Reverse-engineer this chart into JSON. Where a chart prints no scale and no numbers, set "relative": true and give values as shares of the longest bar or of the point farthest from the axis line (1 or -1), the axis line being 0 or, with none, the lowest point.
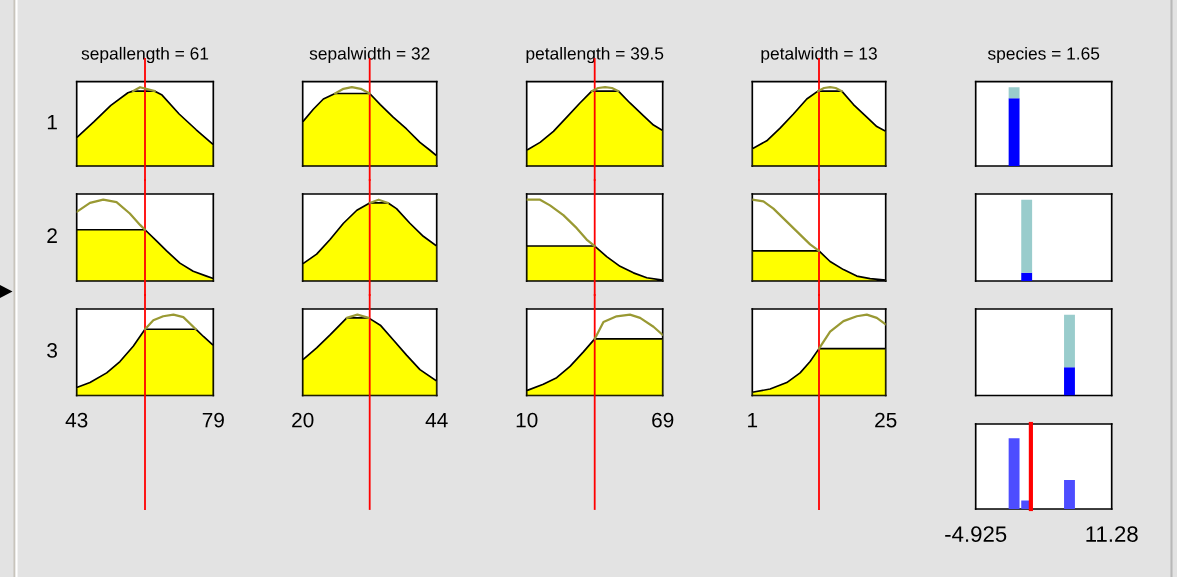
{
  "chart_data": [
    {
      "type": "area",
      "title": "sepallength = 61",
      "ylabel": "1",
      "relative": true,
      "xlim": [
        43,
        79
      ],
      "tick_labels": false,
      "series": [
        {
          "type": "line",
          "color": "#999933",
          "x": [
            57.8,
            59.7,
            63.6
          ],
          "values": [
            0.95,
            1.0,
            0.95
          ]
        },
        {
          "type": "area",
          "color": "#ffff00",
          "x": [
            43,
            47.5,
            52,
            56.5,
            57.8,
            63.6,
            65.5,
            70,
            74.5,
            79
          ],
          "values": [
            0.36,
            0.56,
            0.77,
            0.93,
            0.95,
            0.95,
            0.9,
            0.66,
            0.46,
            0.27
          ]
        }
      ],
      "ref_lines": [
        {
          "axis": "x",
          "value": 61,
          "color": "#ff0000"
        }
      ]
    },
    {
      "type": "area",
      "title": "sepalwidth = 32",
      "relative": true,
      "xlim": [
        20,
        44
      ],
      "tick_labels": false,
      "series": [
        {
          "type": "line",
          "color": "#999933",
          "x": [
            25.8,
            27.3,
            28.8,
            30.4,
            32
          ],
          "values": [
            0.92,
            0.98,
            1.0,
            0.98,
            0.92
          ]
        },
        {
          "type": "area",
          "color": "#ffff00",
          "x": [
            20,
            21.9,
            23.7,
            25.8,
            32,
            33.9,
            36.2,
            38.6,
            41,
            42.8,
            44
          ],
          "values": [
            0.56,
            0.72,
            0.85,
            0.92,
            0.92,
            0.78,
            0.62,
            0.47,
            0.3,
            0.2,
            0.13
          ]
        }
      ],
      "ref_lines": [
        {
          "axis": "x",
          "value": 32,
          "color": "#ff0000"
        }
      ]
    },
    {
      "type": "area",
      "title": "petallength = 39.5",
      "relative": true,
      "xlim": [
        10,
        69
      ],
      "tick_labels": false,
      "series": [
        {
          "type": "line",
          "color": "#999933",
          "x": [
            38.2,
            41,
            44,
            47,
            49.8
          ],
          "values": [
            0.95,
            0.99,
            1.0,
            0.99,
            0.95
          ]
        },
        {
          "type": "area",
          "color": "#ffff00",
          "x": [
            10,
            15.8,
            21.6,
            27.4,
            33.1,
            38.2,
            49.8,
            54.8,
            60.6,
            65,
            69
          ],
          "values": [
            0.2,
            0.3,
            0.44,
            0.62,
            0.8,
            0.95,
            0.95,
            0.8,
            0.64,
            0.52,
            0.45
          ]
        }
      ],
      "ref_lines": [
        {
          "axis": "x",
          "value": 39.5,
          "color": "#ff0000"
        }
      ]
    },
    {
      "type": "area",
      "title": "petalwidth = 13",
      "relative": true,
      "xlim": [
        1,
        25
      ],
      "tick_labels": false,
      "series": [
        {
          "type": "line",
          "color": "#999933",
          "x": [
            12.8,
            13.9,
            15,
            16,
            17.1
          ],
          "values": [
            0.95,
            0.99,
            1.0,
            0.99,
            0.95
          ]
        },
        {
          "type": "area",
          "color": "#ffff00",
          "x": [
            1,
            3.6,
            6,
            8.4,
            10.8,
            12.8,
            17.1,
            19.2,
            21.6,
            23.4,
            25
          ],
          "values": [
            0.22,
            0.32,
            0.48,
            0.66,
            0.85,
            0.95,
            0.95,
            0.78,
            0.62,
            0.5,
            0.44
          ]
        }
      ],
      "ref_lines": [
        {
          "axis": "x",
          "value": 13,
          "color": "#ff0000"
        }
      ]
    },
    {
      "type": "bar",
      "title": "species = 1.65",
      "relative": true,
      "stacked": true,
      "xlim": [
        -4.925,
        11.28
      ],
      "tick_labels": false,
      "x": [
        -0.35
      ],
      "series": [
        {
          "color": "#0000ff",
          "values": [
            0.86
          ]
        },
        {
          "color": "#99cccc",
          "values": [
            0.14
          ]
        }
      ]
    },
    {
      "type": "area",
      "ylabel": "2",
      "relative": true,
      "xlim": [
        43,
        79
      ],
      "tick_labels": false,
      "series": [
        {
          "type": "line",
          "color": "#999933",
          "x": [
            43,
            46.5,
            50,
            53.5,
            57,
            59.7,
            61
          ],
          "values": [
            0.85,
            0.96,
            1.0,
            0.97,
            0.83,
            0.69,
            0.63
          ]
        },
        {
          "type": "area",
          "color": "#ffff00",
          "x": [
            43,
            61,
            64.1,
            66.7,
            70.2,
            73.7,
            77.2,
            79
          ],
          "values": [
            0.63,
            0.63,
            0.49,
            0.37,
            0.22,
            0.12,
            0.06,
            0.03
          ]
        }
      ],
      "ref_lines": [
        {
          "axis": "x",
          "value": 61,
          "color": "#ff0000"
        }
      ]
    },
    {
      "type": "area",
      "relative": true,
      "xlim": [
        20,
        44
      ],
      "tick_labels": false,
      "series": [
        {
          "type": "line",
          "color": "#999933",
          "x": [
            32,
            33.6,
            35.3
          ],
          "values": [
            0.96,
            1.0,
            0.96
          ]
        },
        {
          "type": "area",
          "color": "#ffff00",
          "x": [
            20,
            22.5,
            24.9,
            27.3,
            29.7,
            32,
            35.3,
            36.8,
            39.2,
            41.6,
            44
          ],
          "values": [
            0.21,
            0.33,
            0.51,
            0.71,
            0.87,
            0.96,
            0.96,
            0.89,
            0.71,
            0.55,
            0.43
          ]
        }
      ],
      "ref_lines": [
        {
          "axis": "x",
          "value": 32,
          "color": "#ff0000"
        }
      ]
    },
    {
      "type": "area",
      "relative": true,
      "xlim": [
        10,
        69
      ],
      "tick_labels": false,
      "series": [
        {
          "type": "line",
          "color": "#999933",
          "x": [
            10,
            15.8,
            20.1,
            25.9,
            31.7,
            36,
            39.5
          ],
          "values": [
            1.0,
            1.0,
            0.93,
            0.81,
            0.65,
            0.51,
            0.43
          ]
        },
        {
          "type": "area",
          "color": "#ffff00",
          "x": [
            10,
            39.5,
            44.7,
            50.5,
            56.3,
            62.1,
            69
          ],
          "values": [
            0.43,
            0.43,
            0.3,
            0.18,
            0.1,
            0.04,
            0.01
          ]
        }
      ],
      "ref_lines": [
        {
          "axis": "x",
          "value": 39.5,
          "color": "#ff0000"
        }
      ]
    },
    {
      "type": "area",
      "relative": true,
      "xlim": [
        1,
        25
      ],
      "tick_labels": false,
      "series": [
        {
          "type": "line",
          "color": "#999933",
          "x": [
            1,
            3,
            4.8,
            7.2,
            9.6,
            11.4,
            13
          ],
          "values": [
            1.0,
            0.98,
            0.89,
            0.73,
            0.57,
            0.45,
            0.37
          ]
        },
        {
          "type": "area",
          "color": "#ffff00",
          "x": [
            1,
            13,
            15,
            17.4,
            19.8,
            22.2,
            25
          ],
          "values": [
            0.37,
            0.37,
            0.24,
            0.14,
            0.06,
            0.03,
            0.01
          ]
        }
      ],
      "ref_lines": [
        {
          "axis": "x",
          "value": 13,
          "color": "#ff0000"
        }
      ]
    },
    {
      "type": "bar",
      "relative": true,
      "stacked": true,
      "xlim": [
        -4.925,
        11.28
      ],
      "tick_labels": false,
      "x": [
        1.15
      ],
      "series": [
        {
          "color": "#0000ff",
          "values": [
            0.1
          ]
        },
        {
          "color": "#99cccc",
          "values": [
            0.9
          ]
        }
      ]
    },
    {
      "type": "area",
      "ylabel": "3",
      "relative": true,
      "xlim": [
        43,
        79
      ],
      "xticks": [
        43,
        79
      ],
      "tick_labels": "x",
      "series": [
        {
          "type": "line",
          "color": "#999933",
          "x": [
            61,
            63.2,
            65.8,
            68.5,
            71.1,
            74.4
          ],
          "values": [
            0.82,
            0.93,
            0.98,
            1.0,
            0.97,
            0.82
          ]
        },
        {
          "type": "area",
          "color": "#ffff00",
          "x": [
            43,
            46.5,
            50.9,
            54.4,
            57.9,
            61,
            74.4,
            76.4,
            79
          ],
          "values": [
            0.1,
            0.16,
            0.28,
            0.42,
            0.61,
            0.82,
            0.82,
            0.73,
            0.62
          ]
        }
      ],
      "ref_lines": [
        {
          "axis": "x",
          "value": 61,
          "color": "#ff0000"
        }
      ]
    },
    {
      "type": "area",
      "relative": true,
      "xlim": [
        20,
        44
      ],
      "xticks": [
        20,
        44
      ],
      "tick_labels": "x",
      "series": [
        {
          "type": "line",
          "color": "#999933",
          "x": [
            27.9,
            29.8,
            31.8
          ],
          "values": [
            0.96,
            1.0,
            0.96
          ]
        },
        {
          "type": "area",
          "color": "#ffff00",
          "x": [
            20,
            22.5,
            24.9,
            27.9,
            31.8,
            33.9,
            36.2,
            38.6,
            41,
            44
          ],
          "values": [
            0.44,
            0.59,
            0.75,
            0.96,
            0.96,
            0.87,
            0.69,
            0.5,
            0.32,
            0.18
          ]
        }
      ],
      "ref_lines": [
        {
          "axis": "x",
          "value": 32,
          "color": "#ff0000"
        }
      ]
    },
    {
      "type": "area",
      "relative": true,
      "xlim": [
        10,
        69
      ],
      "xticks": [
        10,
        69
      ],
      "tick_labels": "x",
      "series": [
        {
          "type": "line",
          "color": "#999933",
          "x": [
            39.5,
            43.3,
            49,
            54.8,
            59.2,
            65,
            69
          ],
          "values": [
            0.7,
            0.91,
            0.98,
            1.0,
            0.96,
            0.85,
            0.75
          ]
        },
        {
          "type": "area",
          "color": "#ffff00",
          "x": [
            10,
            17.2,
            23,
            28.8,
            34.6,
            39.5,
            69
          ],
          "values": [
            0.06,
            0.14,
            0.22,
            0.36,
            0.54,
            0.7,
            0.7
          ]
        }
      ],
      "ref_lines": [
        {
          "axis": "x",
          "value": 39.5,
          "color": "#ff0000"
        }
      ]
    },
    {
      "type": "area",
      "relative": true,
      "xlim": [
        1,
        25
      ],
      "xticks": [
        1,
        25
      ],
      "tick_labels": "x",
      "series": [
        {
          "type": "line",
          "color": "#999933",
          "x": [
            13,
            15,
            17.4,
            19.8,
            21.6,
            23.4,
            25
          ],
          "values": [
            0.58,
            0.79,
            0.92,
            0.98,
            1.0,
            0.96,
            0.88
          ]
        },
        {
          "type": "area",
          "color": "#ffff00",
          "x": [
            1,
            4.2,
            7.2,
            9.6,
            11.4,
            13,
            25
          ],
          "values": [
            0.04,
            0.08,
            0.16,
            0.28,
            0.42,
            0.58,
            0.58
          ]
        }
      ],
      "ref_lines": [
        {
          "axis": "x",
          "value": 13,
          "color": "#ff0000"
        }
      ]
    },
    {
      "type": "bar",
      "relative": true,
      "stacked": true,
      "xlim": [
        -4.925,
        11.28
      ],
      "tick_labels": false,
      "x": [
        6.25
      ],
      "series": [
        {
          "color": "#0000ff",
          "values": [
            0.35
          ]
        },
        {
          "color": "#99cccc",
          "values": [
            0.65
          ]
        }
      ]
    },
    {
      "type": "bar",
      "relative": true,
      "xlim": [
        -4.925,
        11.28
      ],
      "xticks": [
        -4.925,
        11.28
      ],
      "tick_labels": "x",
      "x": [
        -0.35,
        1.15,
        6.25
      ],
      "values": [
        1.0,
        0.12,
        0.41
      ],
      "color": "#4d4dff",
      "ref_lines": [
        {
          "axis": "x",
          "value": 1.65,
          "color": "#ff0000"
        }
      ]
    }
  ]
}
